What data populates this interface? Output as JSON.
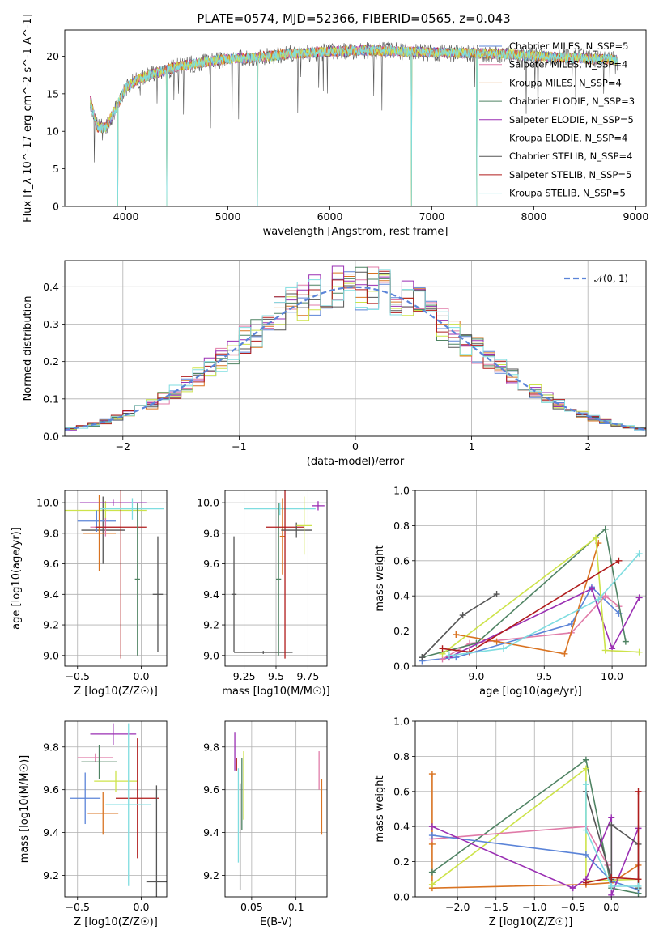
{
  "title": "PLATE=0574, MJD=52366, FIBERID=0565, z=0.043",
  "colors": [
    "#1f77b4",
    "#ff7f0e",
    "#2ca02c",
    "#d62728",
    "#9467bd",
    "#8c564b",
    "#e377c2",
    "#7f7f7f",
    "#bcbd22",
    "#17becf"
  ],
  "chart_data": [
    {
      "type": "line",
      "id": "spectrum",
      "xlabel": "wavelength [Angstrom, rest frame]",
      "ylabel": "Flux [f_λ 10^-17 erg cm^-2 s^-1 A^-1]",
      "xlim": [
        3400,
        9100
      ],
      "ylim": [
        0,
        23.5
      ],
      "xticks": [
        4000,
        5000,
        6000,
        7000,
        8000,
        9000
      ],
      "yticks": [
        0,
        5,
        10,
        15,
        20
      ],
      "grid": false,
      "legend_position": "right",
      "data_x_range": [
        3650,
        8820
      ],
      "series": [
        {
          "name": "Chabrier MILES, N_SSP=5",
          "color": "#5b84d8"
        },
        {
          "name": "Salpeter MILES, N_SSP=4",
          "color": "#e07ba8"
        },
        {
          "name": "Kroupa MILES, N_SSP=4",
          "color": "#d97321"
        },
        {
          "name": "Chabrier ELODIE, N_SSP=3",
          "color": "#4f8363"
        },
        {
          "name": "Salpeter ELODIE, N_SSP=5",
          "color": "#9a2fb3"
        },
        {
          "name": "Kroupa ELODIE, N_SSP=4",
          "color": "#cde34a"
        },
        {
          "name": "Chabrier STELIB, N_SSP=4",
          "color": "#555555"
        },
        {
          "name": "Salpeter STELIB, N_SSP=5",
          "color": "#b01c1c"
        },
        {
          "name": "Kroupa STELIB, N_SSP=5",
          "color": "#7fdde0"
        }
      ],
      "continuum_x": [
        3650,
        3720,
        3800,
        3900,
        4000,
        4100,
        4300,
        4500,
        4800,
        5000,
        5300,
        5600,
        6000,
        6300,
        6600,
        7000,
        7400,
        7800,
        8200,
        8500,
        8820
      ],
      "continuum_y": [
        14.0,
        10.5,
        10.5,
        13.0,
        15.8,
        16.8,
        17.8,
        18.6,
        19.3,
        19.6,
        19.9,
        20.3,
        20.6,
        20.8,
        20.7,
        20.5,
        20.4,
        20.2,
        19.9,
        19.7,
        19.5
      ],
      "dropouts_x": [
        3920,
        4400,
        5290,
        6800,
        7440
      ]
    },
    {
      "type": "line",
      "id": "residuals",
      "xlabel": "(data-model)/error",
      "ylabel": "Normed distribution",
      "xlim": [
        -2.5,
        2.5
      ],
      "ylim": [
        0,
        0.47
      ],
      "xticks": [
        -2,
        -1,
        0,
        1,
        2
      ],
      "yticks": [
        0.0,
        0.1,
        0.2,
        0.3,
        0.4
      ],
      "grid": true,
      "legend_position": "upper right",
      "legend": [
        "𝒩(0, 1)"
      ],
      "curve": {
        "name": "𝒩(0, 1)",
        "mean": 0,
        "std": 1,
        "color": "#5b84d8",
        "style": "dashed"
      }
    },
    {
      "type": "scatter",
      "id": "age_vs_Z",
      "xlabel": "Z [log10(Z/Z☉)]",
      "ylabel": "age [log10(age/yr)]",
      "xlim": [
        -0.6,
        0.2
      ],
      "ylim": [
        8.93,
        10.08
      ],
      "xticks": [
        -0.5,
        0.0
      ],
      "xtick_labels": [
        "−0.5",
        "0.0"
      ],
      "yticks": [
        9.0,
        9.2,
        9.4,
        9.6,
        9.8,
        10.0
      ],
      "grid": true,
      "points": [
        {
          "x": -0.28,
          "y": 9.95,
          "color": "#cde34a",
          "xerr": 0.32,
          "yerr": 0.06
        },
        {
          "x": -0.3,
          "y": 9.82,
          "color": "#555555",
          "xerr": 0.17,
          "yerr": 0.22
        },
        {
          "x": -0.22,
          "y": 10.0,
          "color": "#9a2fb3",
          "xerr": 0.26,
          "yerr": 0.02
        },
        {
          "x": -0.35,
          "y": 9.88,
          "color": "#5b84d8",
          "xerr": 0.15,
          "yerr": 0.07
        },
        {
          "x": -0.33,
          "y": 9.8,
          "color": "#d97321",
          "xerr": 0.13,
          "yerr": 0.25
        },
        {
          "x": -0.28,
          "y": 9.84,
          "color": "#e07ba8",
          "xerr": 0.12,
          "yerr": 0.06
        },
        {
          "x": -0.16,
          "y": 9.84,
          "color": "#b01c1c",
          "xerr": 0.2,
          "yerr": 0.86
        },
        {
          "x": 0.13,
          "y": 9.4,
          "color": "#555555",
          "xerr": 0.04,
          "yerr": 0.38
        },
        {
          "x": -0.07,
          "y": 9.96,
          "color": "#7fdde0",
          "xerr": 0.25,
          "yerr": 0.07
        },
        {
          "x": -0.03,
          "y": 9.5,
          "color": "#4f8363",
          "xerr": 0.02,
          "yerr": 0.5
        }
      ]
    },
    {
      "type": "scatter",
      "id": "age_vs_mass",
      "xlabel": "mass [log10(M/M☉)]",
      "ylabel": "",
      "xlim": [
        9.1,
        9.9
      ],
      "ylim": [
        8.93,
        10.08
      ],
      "xticks": [
        9.25,
        9.5,
        9.75
      ],
      "yticks": [
        9.0,
        9.2,
        9.4,
        9.6,
        9.8,
        10.0
      ],
      "grid": true,
      "points": [
        {
          "x": 9.17,
          "y": 9.4,
          "color": "#555555",
          "xerr": 0.02,
          "yerr": 0.38
        },
        {
          "x": 9.4,
          "y": 9.02,
          "color": "#555555",
          "xerr": 0.23,
          "yerr": 0.01
        },
        {
          "x": 9.53,
          "y": 9.96,
          "color": "#7fdde0",
          "xerr": 0.28,
          "yerr": 0.04
        },
        {
          "x": 9.52,
          "y": 9.5,
          "color": "#4f8363",
          "xerr": 0.02,
          "yerr": 0.5
        },
        {
          "x": 9.55,
          "y": 9.78,
          "color": "#d97321",
          "xerr": 0.02,
          "yerr": 0.25
        },
        {
          "x": 9.57,
          "y": 9.84,
          "color": "#b01c1c",
          "xerr": 0.15,
          "yerr": 0.86
        },
        {
          "x": 9.66,
          "y": 9.82,
          "color": "#555555",
          "xerr": 0.12,
          "yerr": 0.05
        },
        {
          "x": 9.72,
          "y": 9.85,
          "color": "#cde34a",
          "xerr": 0.06,
          "yerr": 0.19
        },
        {
          "x": 9.83,
          "y": 9.98,
          "color": "#9a2fb3",
          "xerr": 0.05,
          "yerr": 0.03
        }
      ]
    },
    {
      "type": "line",
      "id": "mass_weight_vs_age",
      "xlabel": "age [log10(age/yr)]",
      "ylabel": "mass weight",
      "xlim": [
        8.55,
        10.25
      ],
      "ylim": [
        0,
        1.0
      ],
      "xticks": [
        9.0,
        9.5,
        10.0
      ],
      "yticks": [
        0.0,
        0.2,
        0.4,
        0.6,
        0.8,
        1.0
      ],
      "grid": true,
      "series": [
        {
          "color": "#5b84d8",
          "x": [
            8.6,
            8.85,
            9.7,
            9.85,
            10.05
          ],
          "y": [
            0.03,
            0.05,
            0.24,
            0.45,
            0.3
          ]
        },
        {
          "color": "#e07ba8",
          "x": [
            8.75,
            8.95,
            9.7,
            9.95,
            10.05
          ],
          "y": [
            0.04,
            0.13,
            0.19,
            0.4,
            0.34
          ]
        },
        {
          "color": "#d97321",
          "x": [
            8.85,
            9.15,
            9.65,
            9.9
          ],
          "y": [
            0.18,
            0.14,
            0.07,
            0.7
          ]
        },
        {
          "color": "#4f8363",
          "x": [
            8.6,
            9.0,
            9.95,
            10.1
          ],
          "y": [
            0.05,
            0.13,
            0.78,
            0.14
          ]
        },
        {
          "color": "#9a2fb3",
          "x": [
            8.8,
            9.85,
            10.0,
            10.2
          ],
          "y": [
            0.05,
            0.44,
            0.1,
            0.39
          ]
        },
        {
          "color": "#cde34a",
          "x": [
            8.75,
            9.88,
            9.95,
            10.2
          ],
          "y": [
            0.07,
            0.73,
            0.09,
            0.08
          ]
        },
        {
          "color": "#555555",
          "x": [
            8.6,
            8.9,
            9.15
          ],
          "y": [
            0.05,
            0.29,
            0.41
          ]
        },
        {
          "color": "#b01c1c",
          "x": [
            8.75,
            8.95,
            10.05
          ],
          "y": [
            0.1,
            0.08,
            0.6
          ]
        },
        {
          "color": "#7fdde0",
          "x": [
            8.8,
            9.2,
            9.9,
            10.2
          ],
          "y": [
            0.06,
            0.1,
            0.38,
            0.64
          ]
        }
      ]
    },
    {
      "type": "scatter",
      "id": "mass_vs_Z",
      "xlabel": "Z [log10(Z/Z☉)]",
      "ylabel": "mass [log10(M/M☉)]",
      "xlim": [
        -0.6,
        0.2
      ],
      "ylim": [
        9.1,
        9.92
      ],
      "xticks": [
        -0.5,
        0.0
      ],
      "xtick_labels": [
        "−0.5",
        "0.0"
      ],
      "yticks": [
        9.2,
        9.4,
        9.6,
        9.8
      ],
      "grid": true,
      "points": [
        {
          "x": -0.22,
          "y": 9.86,
          "color": "#9a2fb3",
          "xerr": 0.18,
          "yerr": 0.05
        },
        {
          "x": -0.36,
          "y": 9.75,
          "color": "#e07ba8",
          "xerr": 0.14,
          "yerr": 0.02
        },
        {
          "x": -0.33,
          "y": 9.73,
          "color": "#4f8363",
          "xerr": 0.14,
          "yerr": 0.08
        },
        {
          "x": -0.2,
          "y": 9.64,
          "color": "#cde34a",
          "xerr": 0.17,
          "yerr": 0.05
        },
        {
          "x": -0.44,
          "y": 9.56,
          "color": "#5b84d8",
          "xerr": 0.12,
          "yerr": 0.12
        },
        {
          "x": -0.3,
          "y": 9.49,
          "color": "#d97321",
          "xerr": 0.12,
          "yerr": 0.1
        },
        {
          "x": -0.03,
          "y": 9.56,
          "color": "#b01c1c",
          "xerr": 0.17,
          "yerr": 0.28
        },
        {
          "x": 0.12,
          "y": 9.17,
          "color": "#555555",
          "xerr": 0.08,
          "yerr": 0.45
        },
        {
          "x": -0.1,
          "y": 9.53,
          "color": "#7fdde0",
          "xerr": 0.18,
          "yerr": 0.38
        }
      ]
    },
    {
      "type": "scatter",
      "id": "mass_vs_EBV",
      "xlabel": "E(B-V)",
      "ylabel": "",
      "xlim": [
        0.02,
        0.135
      ],
      "ylim": [
        9.1,
        9.92
      ],
      "xticks": [
        0.05,
        0.1
      ],
      "yticks": [
        9.2,
        9.4,
        9.6,
        9.8
      ],
      "grid": true,
      "points": [
        {
          "x": 0.031,
          "y": 9.78,
          "color": "#9a2fb3",
          "xerr": 0,
          "yerr": 0.09
        },
        {
          "x": 0.033,
          "y": 9.72,
          "color": "#b01c1c",
          "xerr": 0,
          "yerr": 0.03
        },
        {
          "x": 0.035,
          "y": 9.48,
          "color": "#7fdde0",
          "xerr": 0,
          "yerr": 0.22
        },
        {
          "x": 0.037,
          "y": 9.38,
          "color": "#555555",
          "xerr": 0,
          "yerr": 0.25
        },
        {
          "x": 0.039,
          "y": 9.58,
          "color": "#4f8363",
          "xerr": 0,
          "yerr": 0.17
        },
        {
          "x": 0.041,
          "y": 9.62,
          "color": "#cde34a",
          "xerr": 0,
          "yerr": 0.16
        },
        {
          "x": 0.126,
          "y": 9.69,
          "color": "#e07ba8",
          "xerr": 0,
          "yerr": 0.09
        },
        {
          "x": 0.129,
          "y": 9.52,
          "color": "#d97321",
          "xerr": 0,
          "yerr": 0.13
        }
      ]
    },
    {
      "type": "line",
      "id": "mass_weight_vs_Z",
      "xlabel": "Z [log10(Z/Z☉)]",
      "ylabel": "mass weight",
      "xlim": [
        -2.55,
        0.45
      ],
      "ylim": [
        0,
        1.0
      ],
      "xticks": [
        -2.0,
        -1.5,
        -1.0,
        -0.5,
        0.0
      ],
      "xtick_labels": [
        "−2.0",
        "−1.5",
        "−1.0",
        "−0.5",
        "0.0"
      ],
      "yticks": [
        0.0,
        0.2,
        0.4,
        0.6,
        0.8,
        1.0
      ],
      "grid": true,
      "series": [
        {
          "color": "#d97321",
          "x": [
            -2.33,
            -2.33,
            -2.33,
            -0.33,
            0.0,
            0.35
          ],
          "y": [
            0.7,
            0.3,
            0.05,
            0.07,
            0.08,
            0.18
          ]
        },
        {
          "color": "#4f8363",
          "x": [
            -2.33,
            -0.33,
            0.0,
            0.35
          ],
          "y": [
            0.14,
            0.78,
            0.05,
            0.02
          ]
        },
        {
          "color": "#cde34a",
          "x": [
            -2.33,
            -0.33,
            -0.33,
            0.35
          ],
          "y": [
            0.07,
            0.73,
            0.09,
            0.1
          ]
        },
        {
          "color": "#e07ba8",
          "x": [
            -2.33,
            -0.33,
            -0.05,
            0.0
          ],
          "y": [
            0.33,
            0.4,
            0.18,
            0.1
          ]
        },
        {
          "color": "#5b84d8",
          "x": [
            -2.33,
            -0.33,
            0.0,
            0.35
          ],
          "y": [
            0.35,
            0.24,
            0.09,
            0.04
          ]
        },
        {
          "color": "#9a2fb3",
          "x": [
            -2.33,
            -0.5,
            -0.33,
            0.0,
            0.0,
            0.35
          ],
          "y": [
            0.4,
            0.05,
            0.1,
            0.45,
            0.01,
            0.39
          ]
        },
        {
          "color": "#555555",
          "x": [
            -0.33,
            0.0,
            0.0,
            0.35,
            0.35
          ],
          "y": [
            0.6,
            0.1,
            0.41,
            0.3,
            0.05
          ]
        },
        {
          "color": "#b01c1c",
          "x": [
            -0.33,
            0.0,
            0.35,
            0.35
          ],
          "y": [
            0.08,
            0.11,
            0.1,
            0.6
          ]
        },
        {
          "color": "#7fdde0",
          "x": [
            -0.33,
            -0.33,
            0.0,
            0.35
          ],
          "y": [
            0.64,
            0.38,
            0.06,
            0.06
          ]
        }
      ]
    }
  ]
}
